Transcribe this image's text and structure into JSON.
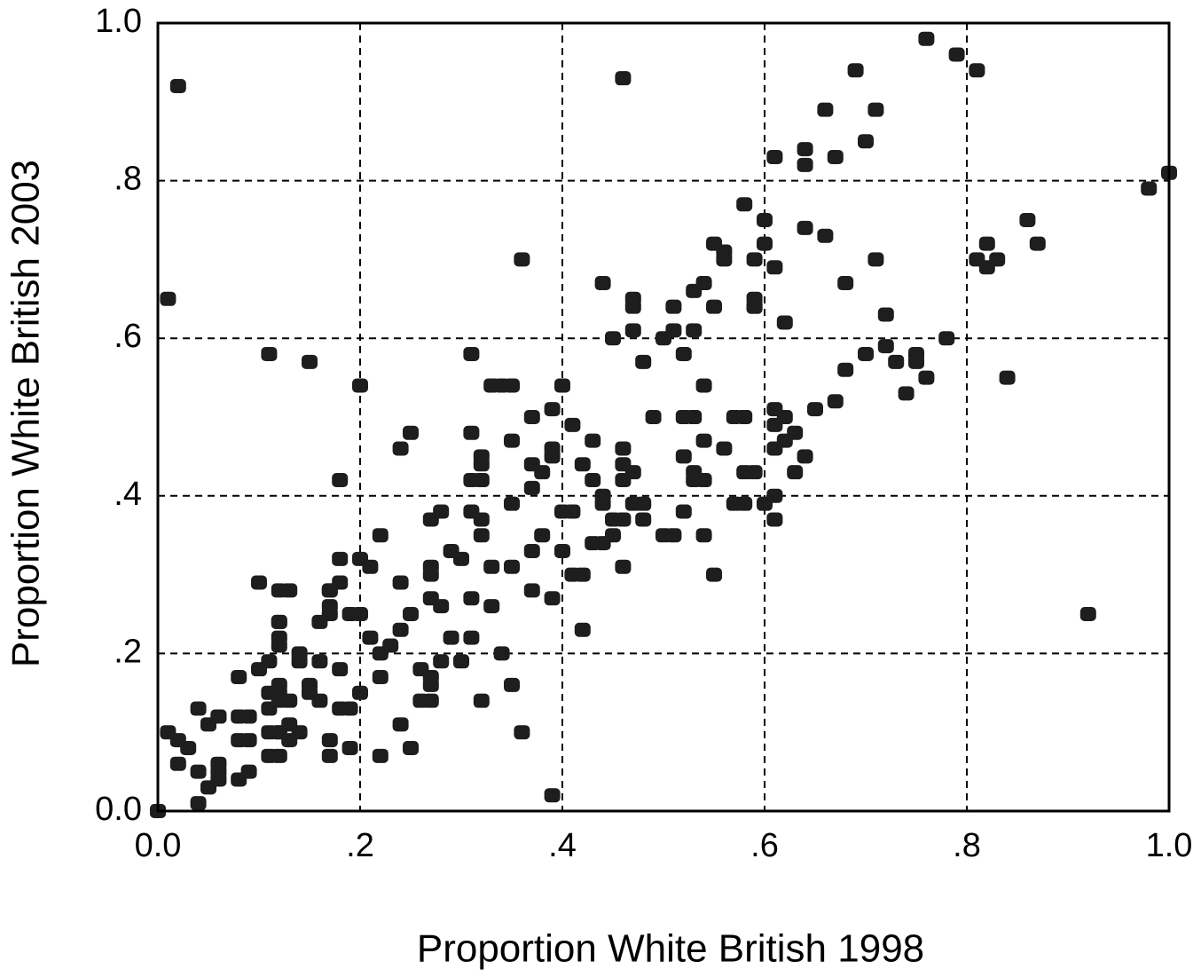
{
  "chart_data": {
    "type": "scatter",
    "x_label": "Proportion White British 1998",
    "y_label": "Proportion White British 2003",
    "color": "#1e1e1e",
    "grid": true,
    "xlim": [
      0,
      1
    ],
    "ylim": [
      0,
      1
    ],
    "xticks": [
      {
        "value": 0,
        "label": "0.0"
      },
      {
        "value": 0.2,
        "label": ".2"
      },
      {
        "value": 0.4,
        "label": ".4"
      },
      {
        "value": 0.6,
        "label": ".6"
      },
      {
        "value": 0.8,
        "label": ".8"
      },
      {
        "value": 1,
        "label": "1.0"
      }
    ],
    "yticks": [
      {
        "value": 0,
        "label": "0.0"
      },
      {
        "value": 0.2,
        "label": ".2"
      },
      {
        "value": 0.4,
        "label": ".4"
      },
      {
        "value": 0.6,
        "label": ".6"
      },
      {
        "value": 0.8,
        "label": ".8"
      },
      {
        "value": 1,
        "label": "1.0"
      }
    ],
    "x": [
      0.0,
      0.02,
      0.01,
      0.11,
      0.15,
      0.2,
      0.18,
      0.25,
      0.24,
      0.31,
      0.36,
      0.46,
      0.76,
      0.79,
      0.81,
      0.69,
      0.71,
      0.66,
      0.7,
      0.67,
      0.64,
      0.64,
      0.61,
      1.0,
      0.98,
      0.58,
      0.6,
      0.64,
      0.66,
      0.6,
      0.55,
      0.56,
      0.56,
      0.59,
      0.61,
      0.86,
      0.87,
      0.82,
      0.81,
      0.82,
      0.83,
      0.71,
      0.68,
      0.54,
      0.53,
      0.44,
      0.47,
      0.47,
      0.51,
      0.59,
      0.59,
      0.59,
      0.55,
      0.62,
      0.72,
      0.51,
      0.5,
      0.53,
      0.45,
      0.47,
      0.78,
      0.52,
      0.7,
      0.72,
      0.73,
      0.75,
      0.75,
      0.76,
      0.74,
      0.68,
      0.84,
      0.48,
      0.54,
      0.34,
      0.33,
      0.35,
      0.4,
      0.39,
      0.37,
      0.41,
      0.49,
      0.53,
      0.52,
      0.57,
      0.58,
      0.61,
      0.61,
      0.62,
      0.67,
      0.65,
      0.63,
      0.64,
      0.35,
      0.43,
      0.31,
      0.32,
      0.32,
      0.31,
      0.32,
      0.39,
      0.39,
      0.37,
      0.38,
      0.46,
      0.46,
      0.47,
      0.42,
      0.43,
      0.46,
      0.52,
      0.54,
      0.53,
      0.54,
      0.53,
      0.56,
      0.58,
      0.59,
      0.63,
      0.62,
      0.61,
      0.44,
      0.44,
      0.37,
      0.35,
      0.4,
      0.41,
      0.31,
      0.32,
      0.28,
      0.27,
      0.47,
      0.48,
      0.46,
      0.48,
      0.45,
      0.45,
      0.5,
      0.51,
      0.52,
      0.54,
      0.57,
      0.58,
      0.6,
      0.61,
      0.61,
      0.32,
      0.38,
      0.44,
      0.43,
      0.4,
      0.37,
      0.46,
      0.55,
      0.35,
      0.33,
      0.29,
      0.3,
      0.22,
      0.27,
      0.27,
      0.2,
      0.21,
      0.18,
      0.41,
      0.42,
      0.37,
      0.39,
      0.31,
      0.33,
      0.27,
      0.28,
      0.24,
      0.1,
      0.12,
      0.13,
      0.17,
      0.18,
      0.17,
      0.17,
      0.17,
      0.19,
      0.2,
      0.25,
      0.12,
      0.12,
      0.16,
      0.42,
      0.21,
      0.31,
      0.24,
      0.29,
      0.23,
      0.22,
      0.12,
      0.12,
      0.34,
      0.14,
      0.14,
      0.16,
      0.28,
      0.3,
      0.11,
      0.26,
      0.18,
      0.1,
      0.08,
      0.22,
      0.27,
      0.12,
      0.35,
      0.15,
      0.27,
      0.12,
      0.15,
      0.11,
      0.26,
      0.27,
      0.32,
      0.13,
      0.16,
      0.2,
      0.11,
      0.12,
      0.19,
      0.18,
      0.04,
      0.08,
      0.06,
      0.06,
      0.09,
      0.13,
      0.24,
      0.05,
      0.01,
      0.14,
      0.11,
      0.12,
      0.12,
      0.13,
      0.02,
      0.08,
      0.09,
      0.17,
      0.36,
      0.03,
      0.25,
      0.19,
      0.22,
      0.11,
      0.12,
      0.02,
      0.17,
      0.06,
      0.04,
      0.06,
      0.06,
      0.09,
      0.08,
      0.05,
      0.39,
      0.04,
      0.0,
      0.92
    ],
    "values": [
      0.0,
      0.92,
      0.65,
      0.58,
      0.57,
      0.54,
      0.42,
      0.48,
      0.46,
      0.58,
      0.7,
      0.93,
      0.98,
      0.96,
      0.94,
      0.94,
      0.89,
      0.89,
      0.85,
      0.83,
      0.84,
      0.82,
      0.83,
      0.81,
      0.79,
      0.77,
      0.75,
      0.74,
      0.73,
      0.72,
      0.72,
      0.71,
      0.7,
      0.7,
      0.69,
      0.75,
      0.72,
      0.72,
      0.7,
      0.69,
      0.7,
      0.7,
      0.67,
      0.67,
      0.66,
      0.67,
      0.65,
      0.64,
      0.64,
      0.65,
      0.64,
      0.64,
      0.64,
      0.62,
      0.63,
      0.61,
      0.6,
      0.61,
      0.6,
      0.61,
      0.6,
      0.58,
      0.58,
      0.59,
      0.57,
      0.58,
      0.57,
      0.55,
      0.53,
      0.56,
      0.55,
      0.57,
      0.54,
      0.54,
      0.54,
      0.54,
      0.54,
      0.51,
      0.5,
      0.49,
      0.5,
      0.5,
      0.5,
      0.5,
      0.5,
      0.51,
      0.49,
      0.5,
      0.52,
      0.51,
      0.48,
      0.45,
      0.47,
      0.47,
      0.48,
      0.45,
      0.44,
      0.42,
      0.42,
      0.46,
      0.45,
      0.44,
      0.43,
      0.46,
      0.44,
      0.43,
      0.44,
      0.42,
      0.42,
      0.45,
      0.47,
      0.43,
      0.42,
      0.42,
      0.46,
      0.43,
      0.43,
      0.43,
      0.47,
      0.46,
      0.4,
      0.39,
      0.41,
      0.39,
      0.38,
      0.38,
      0.38,
      0.37,
      0.38,
      0.37,
      0.39,
      0.39,
      0.37,
      0.37,
      0.35,
      0.37,
      0.35,
      0.35,
      0.38,
      0.35,
      0.39,
      0.39,
      0.39,
      0.4,
      0.37,
      0.35,
      0.35,
      0.34,
      0.34,
      0.33,
      0.33,
      0.31,
      0.3,
      0.31,
      0.31,
      0.33,
      0.32,
      0.35,
      0.31,
      0.3,
      0.32,
      0.31,
      0.32,
      0.3,
      0.3,
      0.28,
      0.27,
      0.27,
      0.26,
      0.27,
      0.26,
      0.29,
      0.29,
      0.28,
      0.28,
      0.28,
      0.29,
      0.28,
      0.26,
      0.25,
      0.25,
      0.25,
      0.25,
      0.24,
      0.24,
      0.24,
      0.23,
      0.22,
      0.22,
      0.23,
      0.22,
      0.21,
      0.2,
      0.22,
      0.21,
      0.2,
      0.2,
      0.19,
      0.19,
      0.19,
      0.19,
      0.19,
      0.18,
      0.18,
      0.18,
      0.17,
      0.17,
      0.17,
      0.16,
      0.16,
      0.16,
      0.16,
      0.15,
      0.15,
      0.15,
      0.14,
      0.14,
      0.14,
      0.14,
      0.14,
      0.15,
      0.13,
      0.14,
      0.13,
      0.13,
      0.13,
      0.12,
      0.12,
      0.12,
      0.12,
      0.11,
      0.11,
      0.11,
      0.1,
      0.1,
      0.1,
      0.1,
      0.1,
      0.09,
      0.09,
      0.09,
      0.09,
      0.09,
      0.1,
      0.08,
      0.08,
      0.08,
      0.07,
      0.07,
      0.07,
      0.06,
      0.07,
      0.06,
      0.05,
      0.05,
      0.04,
      0.05,
      0.04,
      0.03,
      0.02,
      0.01,
      0.0,
      0.25
    ]
  }
}
